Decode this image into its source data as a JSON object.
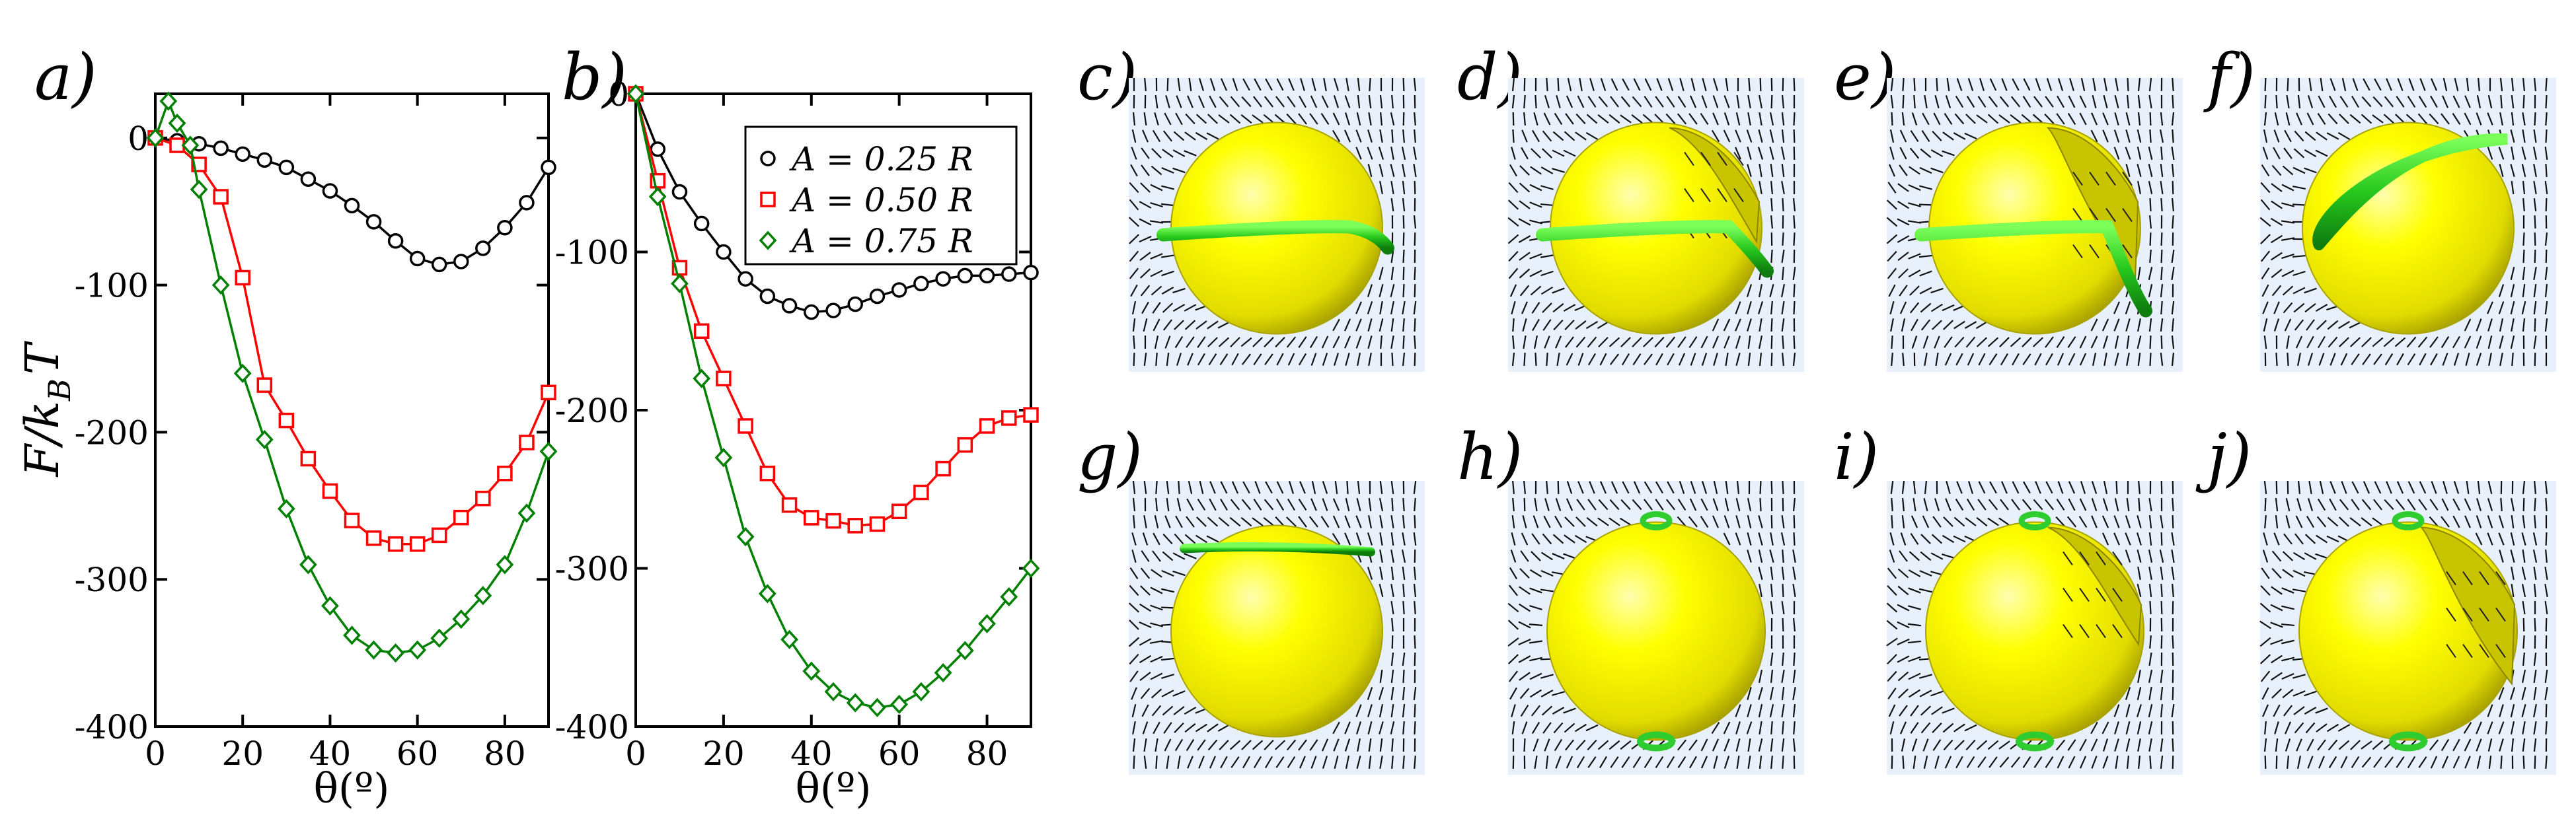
{
  "chart_data": [
    {
      "panel": "a)",
      "type": "line",
      "xlabel": "θ(º)",
      "ylabel": "F/k_BT",
      "ylabel_main": "F/k",
      "ylabel_sub": "B",
      "ylabel_tail": "T",
      "xlim": [
        0,
        90
      ],
      "ylim": [
        -400,
        30
      ],
      "xticks": [
        0,
        20,
        40,
        60,
        80
      ],
      "yticks": [
        0,
        -100,
        -200,
        -300,
        -400
      ],
      "series": [
        {
          "name": "A = 0.25 R",
          "color": "#000000",
          "marker": "circle",
          "x": [
            0,
            5,
            10,
            15,
            20,
            25,
            30,
            35,
            40,
            45,
            50,
            55,
            60,
            65,
            70,
            75,
            80,
            85,
            90
          ],
          "y": [
            0,
            -2,
            -4,
            -7,
            -11,
            -15,
            -20,
            -28,
            -36,
            -46,
            -57,
            -70,
            -82,
            -86,
            -84,
            -75,
            -61,
            -44,
            -20
          ]
        },
        {
          "name": "A = 0.50 R",
          "color": "#ff0000",
          "marker": "square",
          "x": [
            0,
            5,
            10,
            15,
            20,
            25,
            30,
            35,
            40,
            45,
            50,
            55,
            60,
            65,
            70,
            75,
            80,
            85,
            90
          ],
          "y": [
            0,
            -5,
            -18,
            -40,
            -95,
            -168,
            -192,
            -218,
            -240,
            -260,
            -272,
            -276,
            -276,
            -270,
            -258,
            -245,
            -228,
            -207,
            -173
          ]
        },
        {
          "name": "A = 0.75 R",
          "color": "#008000",
          "marker": "diamond",
          "x": [
            0,
            3,
            5,
            8,
            10,
            15,
            20,
            25,
            30,
            35,
            40,
            45,
            50,
            55,
            60,
            65,
            70,
            75,
            80,
            85,
            90
          ],
          "y": [
            0,
            25,
            10,
            -5,
            -35,
            -100,
            -160,
            -205,
            -252,
            -290,
            -318,
            -338,
            -348,
            -350,
            -348,
            -340,
            -327,
            -311,
            -290,
            -255,
            -213
          ]
        }
      ]
    },
    {
      "panel": "b)",
      "type": "line",
      "xlabel": "θ(º)",
      "ylabel": "",
      "xlim": [
        0,
        90
      ],
      "ylim": [
        -400,
        0
      ],
      "xticks": [
        0,
        20,
        40,
        60,
        80
      ],
      "yticks": [
        0,
        -100,
        -200,
        -300,
        -400
      ],
      "legend": [
        "A = 0.25 R",
        "A = 0.50 R",
        "A = 0.75 R"
      ],
      "legend_position": "top-right",
      "series": [
        {
          "name": "A = 0.25 R",
          "color": "#000000",
          "marker": "circle",
          "x": [
            0,
            5,
            10,
            15,
            20,
            25,
            30,
            35,
            40,
            45,
            50,
            55,
            60,
            65,
            70,
            75,
            80,
            85,
            90
          ],
          "y": [
            0,
            -35,
            -62,
            -82,
            -100,
            -117,
            -128,
            -134,
            -138,
            -137,
            -133,
            -128,
            -124,
            -120,
            -117,
            -115,
            -115,
            -114,
            -113
          ]
        },
        {
          "name": "A = 0.50 R",
          "color": "#ff0000",
          "marker": "square",
          "x": [
            0,
            5,
            10,
            15,
            20,
            25,
            30,
            35,
            40,
            45,
            50,
            55,
            60,
            65,
            70,
            75,
            80,
            85,
            90
          ],
          "y": [
            0,
            -55,
            -110,
            -150,
            -180,
            -210,
            -240,
            -260,
            -268,
            -270,
            -273,
            -272,
            -264,
            -252,
            -237,
            -222,
            -210,
            -205,
            -203
          ]
        },
        {
          "name": "A = 0.75 R",
          "color": "#008000",
          "marker": "diamond",
          "x": [
            0,
            5,
            10,
            15,
            20,
            25,
            30,
            35,
            40,
            45,
            50,
            55,
            60,
            65,
            70,
            75,
            80,
            85,
            90
          ],
          "y": [
            0,
            -65,
            -120,
            -180,
            -230,
            -280,
            -316,
            -345,
            -365,
            -378,
            -385,
            -388,
            -386,
            -378,
            -366,
            -352,
            -335,
            -318,
            -300
          ]
        }
      ]
    }
  ],
  "snapshot_panels": [
    {
      "label": "c)",
      "description": "sphere-equatorial-ring"
    },
    {
      "label": "d)",
      "description": "sphere-ring-dented"
    },
    {
      "label": "e)",
      "description": "sphere-ring-deep-dent"
    },
    {
      "label": "f)",
      "description": "sphere-ring-tilted"
    },
    {
      "label": "g)",
      "description": "sphere-ring-top"
    },
    {
      "label": "h)",
      "description": "sphere-polar-defects"
    },
    {
      "label": "i)",
      "description": "sphere-polar-defects-dent"
    },
    {
      "label": "j)",
      "description": "sphere-polar-defects-deep-dent"
    }
  ],
  "colors": {
    "sphere": "#ffff00",
    "sphere_shade": "#8c8c00",
    "defect_ring": "#2ecc2e",
    "background_box": "#e8f1fb",
    "director": "#111111"
  }
}
